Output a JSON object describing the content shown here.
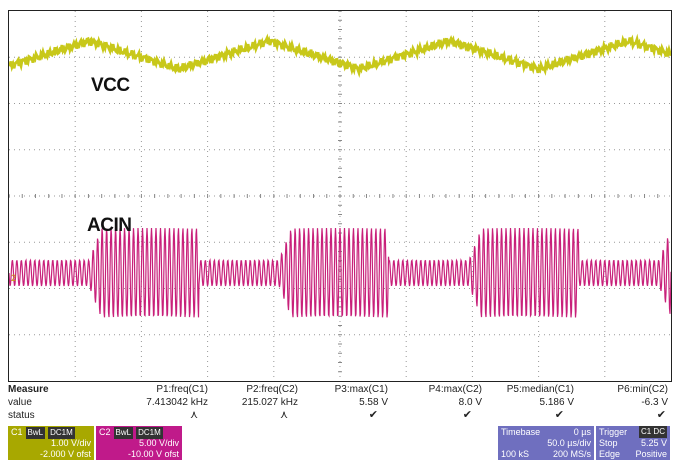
{
  "traces": {
    "c1_label": "VCC",
    "c2_label": "ACIN",
    "c1_color": "#c8c81a",
    "c2_color": "#c8207a",
    "marker": "2"
  },
  "measure": {
    "heading": "Measure",
    "value_label": "value",
    "status_label": "status",
    "params": [
      {
        "name": "P1:freq(C1)",
        "value": "7.413042 kHz",
        "status": "⋏"
      },
      {
        "name": "P2:freq(C2)",
        "value": "215.027 kHz",
        "status": "⋏"
      },
      {
        "name": "P3:max(C1)",
        "value": "5.58 V",
        "status": "✔"
      },
      {
        "name": "P4:max(C2)",
        "value": "8.0 V",
        "status": "✔"
      },
      {
        "name": "P5:median(C1)",
        "value": "5.186 V",
        "status": "✔"
      },
      {
        "name": "P6:min(C2)",
        "value": "-6.3 V",
        "status": "✔"
      }
    ]
  },
  "channels": {
    "c1": {
      "name": "C1",
      "tags": [
        "BwL",
        "DC1M"
      ],
      "vdiv": "1.00 V/div",
      "ofst": "-2.000 V ofst",
      "color": "#a8a800"
    },
    "c2": {
      "name": "C2",
      "tags": [
        "BwL",
        "DC1M"
      ],
      "vdiv": "5.00 V/div",
      "ofst": "-10.00 V ofst",
      "color": "#c01a8a"
    }
  },
  "timebase": {
    "label": "Timebase",
    "delay": "0 µs",
    "tdiv": "50.0 µs/div",
    "samples": "100 kS",
    "rate": "200 MS/s",
    "color": "#6f6fbf"
  },
  "trigger": {
    "label": "Trigger",
    "chan": "C1 DC",
    "mode": "Stop",
    "level": "5.25 V",
    "type": "Edge",
    "slope": "Positive",
    "color": "#6f6fbf"
  }
}
